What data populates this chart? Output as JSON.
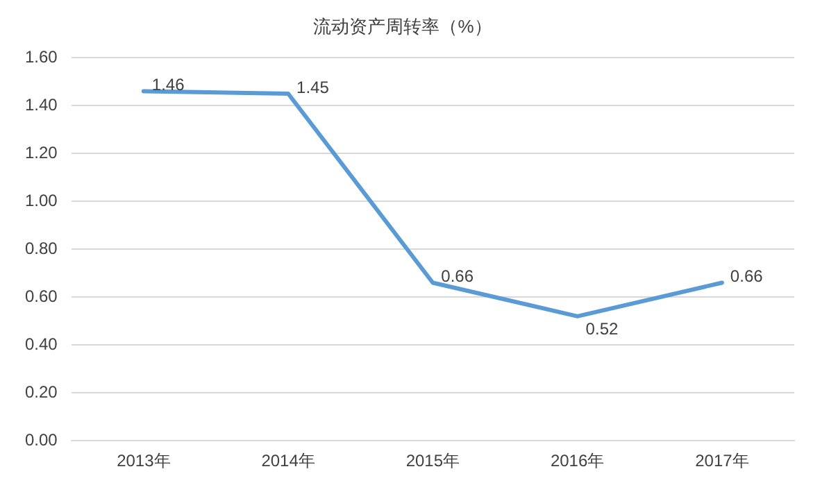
{
  "chart_data": {
    "type": "line",
    "title": "流动资产周转率（%）",
    "categories": [
      "2013年",
      "2014年",
      "2015年",
      "2016年",
      "2017年"
    ],
    "series": [
      {
        "color": "#5b9bd5",
        "values": [
          1.46,
          1.45,
          0.66,
          0.52,
          0.66
        ]
      }
    ],
    "ylim": [
      0,
      1.6
    ],
    "yticks": [
      {
        "value": 0,
        "label": "0.00"
      },
      {
        "value": 0.2,
        "label": "0.20"
      },
      {
        "value": 0.4,
        "label": "0.40"
      },
      {
        "value": 0.6,
        "label": "0.60"
      },
      {
        "value": 0.8,
        "label": "0.80"
      },
      {
        "value": 1.0,
        "label": "1.00"
      },
      {
        "value": 1.2,
        "label": "1.20"
      },
      {
        "value": 1.4,
        "label": "1.40"
      },
      {
        "value": 1.6,
        "label": "1.60"
      }
    ],
    "grid": "y",
    "legend": false,
    "marker": "none",
    "line_style": "solid",
    "data_labels": true
  }
}
